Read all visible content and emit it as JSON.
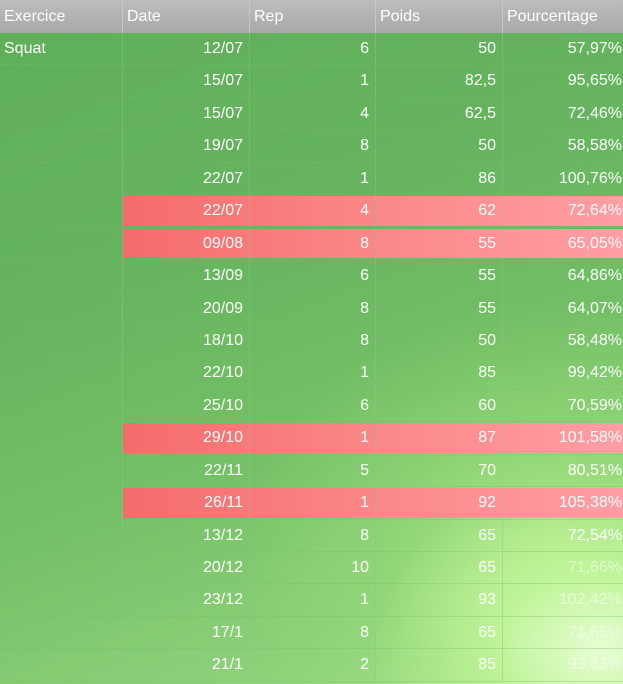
{
  "columns": {
    "exercice": "Exercice",
    "date": "Date",
    "rep": "Rep",
    "poids": "Poids",
    "pourcentage": "Pourcentage"
  },
  "rows": [
    {
      "exercice": "Squat",
      "date": "12/07",
      "rep": "6",
      "poids": "50",
      "pct": "57,97%",
      "highlight": false
    },
    {
      "exercice": "",
      "date": "15/07",
      "rep": "1",
      "poids": "82,5",
      "pct": "95,65%",
      "highlight": false
    },
    {
      "exercice": "",
      "date": "15/07",
      "rep": "4",
      "poids": "62,5",
      "pct": "72,46%",
      "highlight": false
    },
    {
      "exercice": "",
      "date": "19/07",
      "rep": "8",
      "poids": "50",
      "pct": "58,58%",
      "highlight": false
    },
    {
      "exercice": "",
      "date": "22/07",
      "rep": "1",
      "poids": "86",
      "pct": "100,76%",
      "highlight": false
    },
    {
      "exercice": "",
      "date": "22/07",
      "rep": "4",
      "poids": "62",
      "pct": "72,64%",
      "highlight": true
    },
    {
      "exercice": "",
      "date": "09/08",
      "rep": "8",
      "poids": "55",
      "pct": "65,05%",
      "highlight": true
    },
    {
      "exercice": "",
      "date": "13/09",
      "rep": "6",
      "poids": "55",
      "pct": "64,86%",
      "highlight": false
    },
    {
      "exercice": "",
      "date": "20/09",
      "rep": "8",
      "poids": "55",
      "pct": "64,07%",
      "highlight": false
    },
    {
      "exercice": "",
      "date": "18/10",
      "rep": "8",
      "poids": "50",
      "pct": "58,48%",
      "highlight": false
    },
    {
      "exercice": "",
      "date": "22/10",
      "rep": "1",
      "poids": "85",
      "pct": "99,42%",
      "highlight": false
    },
    {
      "exercice": "",
      "date": "25/10",
      "rep": "6",
      "poids": "60",
      "pct": "70,59%",
      "highlight": false
    },
    {
      "exercice": "",
      "date": "29/10",
      "rep": "1",
      "poids": "87",
      "pct": "101,58%",
      "highlight": true
    },
    {
      "exercice": "",
      "date": "22/11",
      "rep": "5",
      "poids": "70",
      "pct": "80,51%",
      "highlight": false
    },
    {
      "exercice": "",
      "date": "26/11",
      "rep": "1",
      "poids": "92",
      "pct": "105,38%",
      "highlight": true
    },
    {
      "exercice": "",
      "date": "13/12",
      "rep": "8",
      "poids": "65",
      "pct": "72,54%",
      "highlight": false
    },
    {
      "exercice": "",
      "date": "20/12",
      "rep": "10",
      "poids": "65",
      "pct": "71,66%",
      "highlight": false
    },
    {
      "exercice": "",
      "date": "23/12",
      "rep": "1",
      "poids": "93",
      "pct": "102,42%",
      "highlight": false
    },
    {
      "exercice": "",
      "date": "17/1",
      "rep": "8",
      "poids": "65",
      "pct": "71,65%",
      "highlight": false
    },
    {
      "exercice": "",
      "date": "21/1",
      "rep": "2",
      "poids": "85",
      "pct": "93,83%",
      "highlight": false
    }
  ],
  "colors": {
    "header_bg": "#b3b3b3",
    "row_bg": "#66b45f",
    "highlight_bg": "#fa8585",
    "text": "#ffffff"
  }
}
